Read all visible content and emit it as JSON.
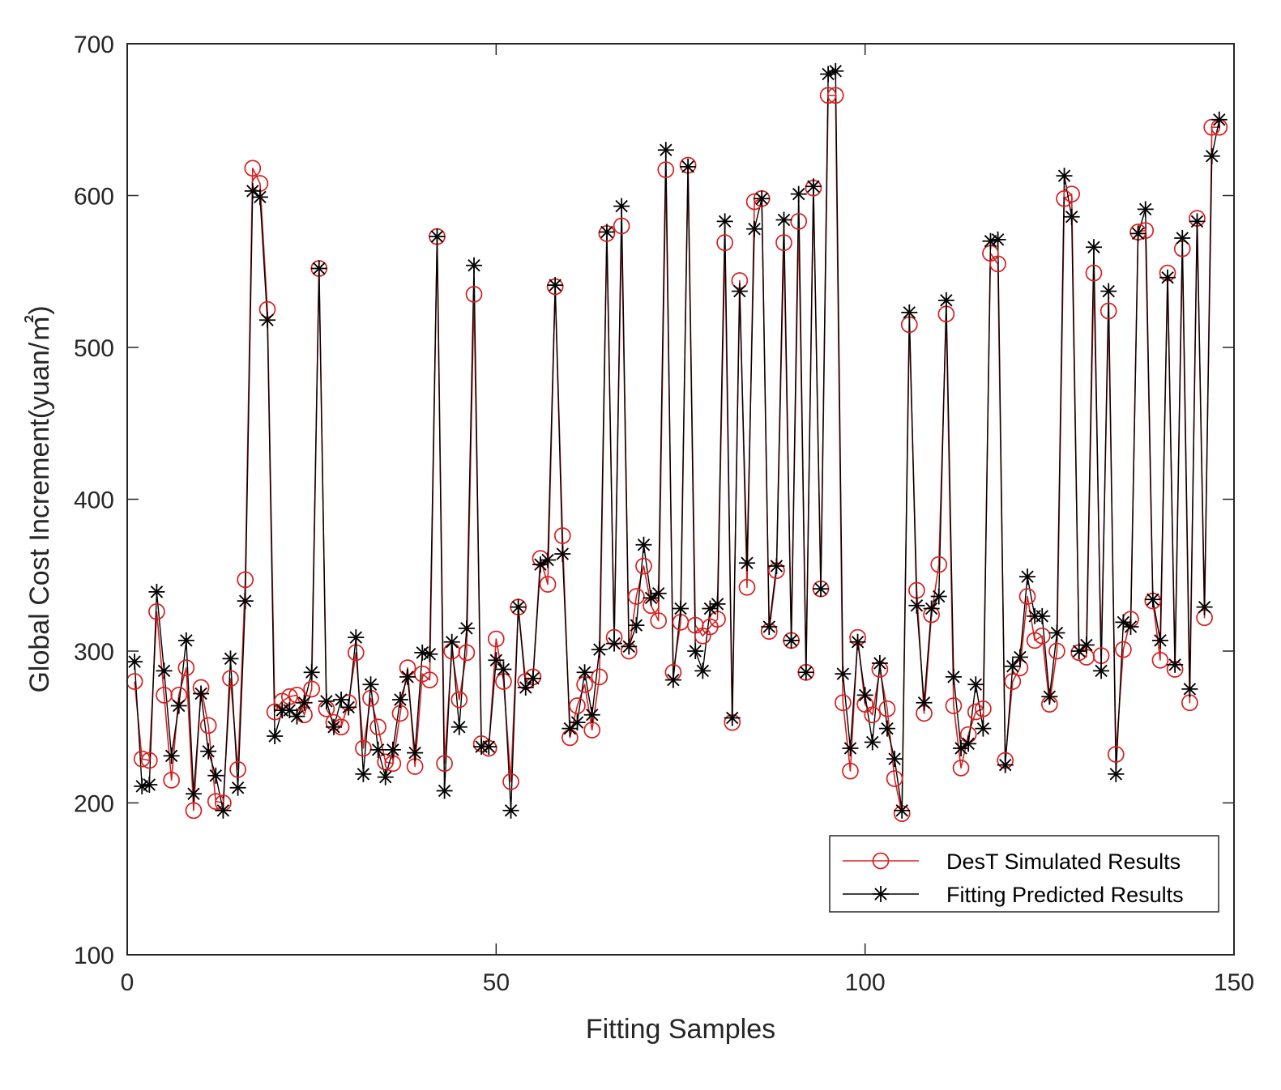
{
  "chart_data": {
    "type": "line",
    "xlabel": "Fitting Samples",
    "ylabel": "Global Cost Increment(yuan/㎡)",
    "xlim": [
      0,
      150
    ],
    "ylim": [
      100,
      700
    ],
    "xticks": [
      "0",
      "50",
      "100",
      "150"
    ],
    "yticks": [
      "100",
      "200",
      "300",
      "400",
      "500",
      "600",
      "700"
    ],
    "grid": false,
    "legend_position": "bottom-right",
    "colors": {
      "simulated": "#d62020",
      "predicted": "#000000",
      "axes": "#262626"
    },
    "series": [
      {
        "name": "DesT Simulated Results",
        "marker": "circle",
        "values": [
          280,
          229,
          228,
          326,
          271,
          215,
          271,
          289,
          195,
          276,
          251,
          201,
          200,
          282,
          222,
          347,
          618,
          608,
          525,
          260,
          267,
          270,
          271,
          258,
          275,
          552,
          262,
          253,
          250,
          266,
          299,
          236,
          269,
          250,
          227,
          226,
          259,
          289,
          224,
          285,
          281,
          573,
          226,
          300,
          268,
          299,
          535,
          239,
          236,
          308,
          280,
          214,
          329,
          280,
          283,
          361,
          344,
          540,
          376,
          243,
          264,
          278,
          248,
          283,
          575,
          309,
          580,
          300,
          336,
          356,
          330,
          320,
          617,
          286,
          319,
          620,
          317,
          310,
          316,
          321,
          569,
          253,
          544,
          342,
          596,
          598,
          313,
          353,
          569,
          307,
          583,
          286,
          605,
          341,
          666,
          666,
          266,
          221,
          309,
          265,
          258,
          288,
          262,
          216,
          193,
          515,
          340,
          259,
          324,
          357,
          522,
          264,
          223,
          245,
          260,
          262,
          562,
          555,
          228,
          280,
          289,
          336,
          307,
          310,
          265,
          300,
          598,
          601,
          299,
          296,
          549,
          297,
          524,
          232,
          301,
          321,
          576,
          577,
          333,
          294,
          549,
          288,
          565,
          266,
          585,
          322,
          645,
          645
        ],
        "marker_values": [
          280,
          229,
          228,
          326,
          271,
          215,
          271,
          289,
          195,
          276,
          251,
          201,
          200,
          282,
          222,
          347,
          618,
          608,
          525,
          260,
          267,
          270,
          271,
          258,
          275,
          552,
          262,
          253,
          250,
          266,
          299,
          236,
          269,
          250,
          227,
          226,
          259,
          289,
          224,
          285,
          281,
          573,
          226,
          300,
          268,
          299,
          535,
          239,
          236,
          308,
          280,
          214,
          329,
          280,
          283,
          361,
          344,
          540,
          376,
          243,
          264,
          278,
          248,
          283,
          575,
          309,
          580,
          300,
          336,
          356,
          330,
          320,
          617,
          286,
          319,
          620,
          317,
          310,
          316,
          321,
          569,
          253,
          544,
          342,
          596,
          598,
          313,
          353,
          569,
          307,
          583,
          286,
          605,
          341,
          666,
          666,
          266,
          221,
          309,
          265,
          258,
          288,
          262,
          216,
          193,
          515,
          340,
          259,
          324,
          357,
          522,
          264,
          223,
          245,
          260,
          262,
          562,
          555,
          228,
          280,
          289,
          336,
          307,
          310,
          265,
          300,
          598,
          601,
          299,
          296,
          549,
          297,
          524,
          232,
          301,
          321,
          576,
          577,
          333,
          294,
          549,
          288,
          565,
          266,
          585,
          322,
          645,
          645
        ]
      },
      {
        "name": "Fitting Predicted Results",
        "marker": "asterisk",
        "values": [
          293,
          211,
          212,
          339,
          287,
          231,
          264,
          307,
          206,
          272,
          234,
          218,
          195,
          295,
          210,
          333,
          603,
          599,
          518,
          244,
          261,
          261,
          257,
          266,
          286,
          552,
          267,
          250,
          268,
          263,
          309,
          219,
          278,
          235,
          217,
          235,
          268,
          283,
          233,
          299,
          298,
          573,
          208,
          306,
          250,
          315,
          554,
          237,
          237,
          294,
          288,
          195,
          329,
          276,
          282,
          357,
          360,
          541,
          364,
          249,
          253,
          286,
          258,
          301,
          576,
          305,
          593,
          303,
          317,
          370,
          335,
          338,
          630,
          281,
          328,
          619,
          300,
          287,
          328,
          331,
          583,
          256,
          537,
          358,
          578,
          598,
          316,
          356,
          584,
          307,
          601,
          286,
          606,
          341,
          680,
          682,
          285,
          236,
          306,
          271,
          240,
          292,
          249,
          229,
          195,
          523,
          330,
          266,
          328,
          336,
          531,
          283,
          236,
          239,
          278,
          249,
          570,
          571,
          225,
          290,
          296,
          349,
          323,
          323,
          270,
          312,
          613,
          586,
          300,
          304,
          566,
          287,
          537,
          219,
          319,
          316,
          575,
          591,
          334,
          307,
          546,
          291,
          572,
          275,
          583,
          329,
          626,
          650
        ],
        "marker_values": [
          293,
          211,
          212,
          339,
          287,
          231,
          264,
          307,
          206,
          272,
          234,
          218,
          195,
          295,
          210,
          333,
          603,
          599,
          518,
          244,
          261,
          261,
          257,
          266,
          286,
          552,
          267,
          250,
          268,
          263,
          309,
          219,
          278,
          235,
          217,
          235,
          268,
          283,
          233,
          299,
          298,
          573,
          208,
          306,
          250,
          315,
          554,
          237,
          237,
          294,
          288,
          195,
          329,
          276,
          282,
          357,
          360,
          541,
          364,
          249,
          253,
          286,
          258,
          301,
          576,
          305,
          593,
          303,
          317,
          370,
          335,
          338,
          630,
          281,
          328,
          619,
          300,
          287,
          328,
          331,
          583,
          256,
          537,
          358,
          578,
          598,
          316,
          356,
          584,
          307,
          601,
          286,
          606,
          341,
          680,
          682,
          285,
          236,
          306,
          271,
          240,
          292,
          249,
          229,
          195,
          523,
          330,
          266,
          328,
          336,
          531,
          283,
          236,
          239,
          278,
          249,
          570,
          571,
          225,
          290,
          296,
          349,
          323,
          323,
          270,
          312,
          613,
          586,
          300,
          304,
          566,
          287,
          537,
          219,
          319,
          316,
          575,
          591,
          334,
          307,
          546,
          291,
          572,
          275,
          583,
          329,
          626,
          650
        ]
      }
    ]
  }
}
